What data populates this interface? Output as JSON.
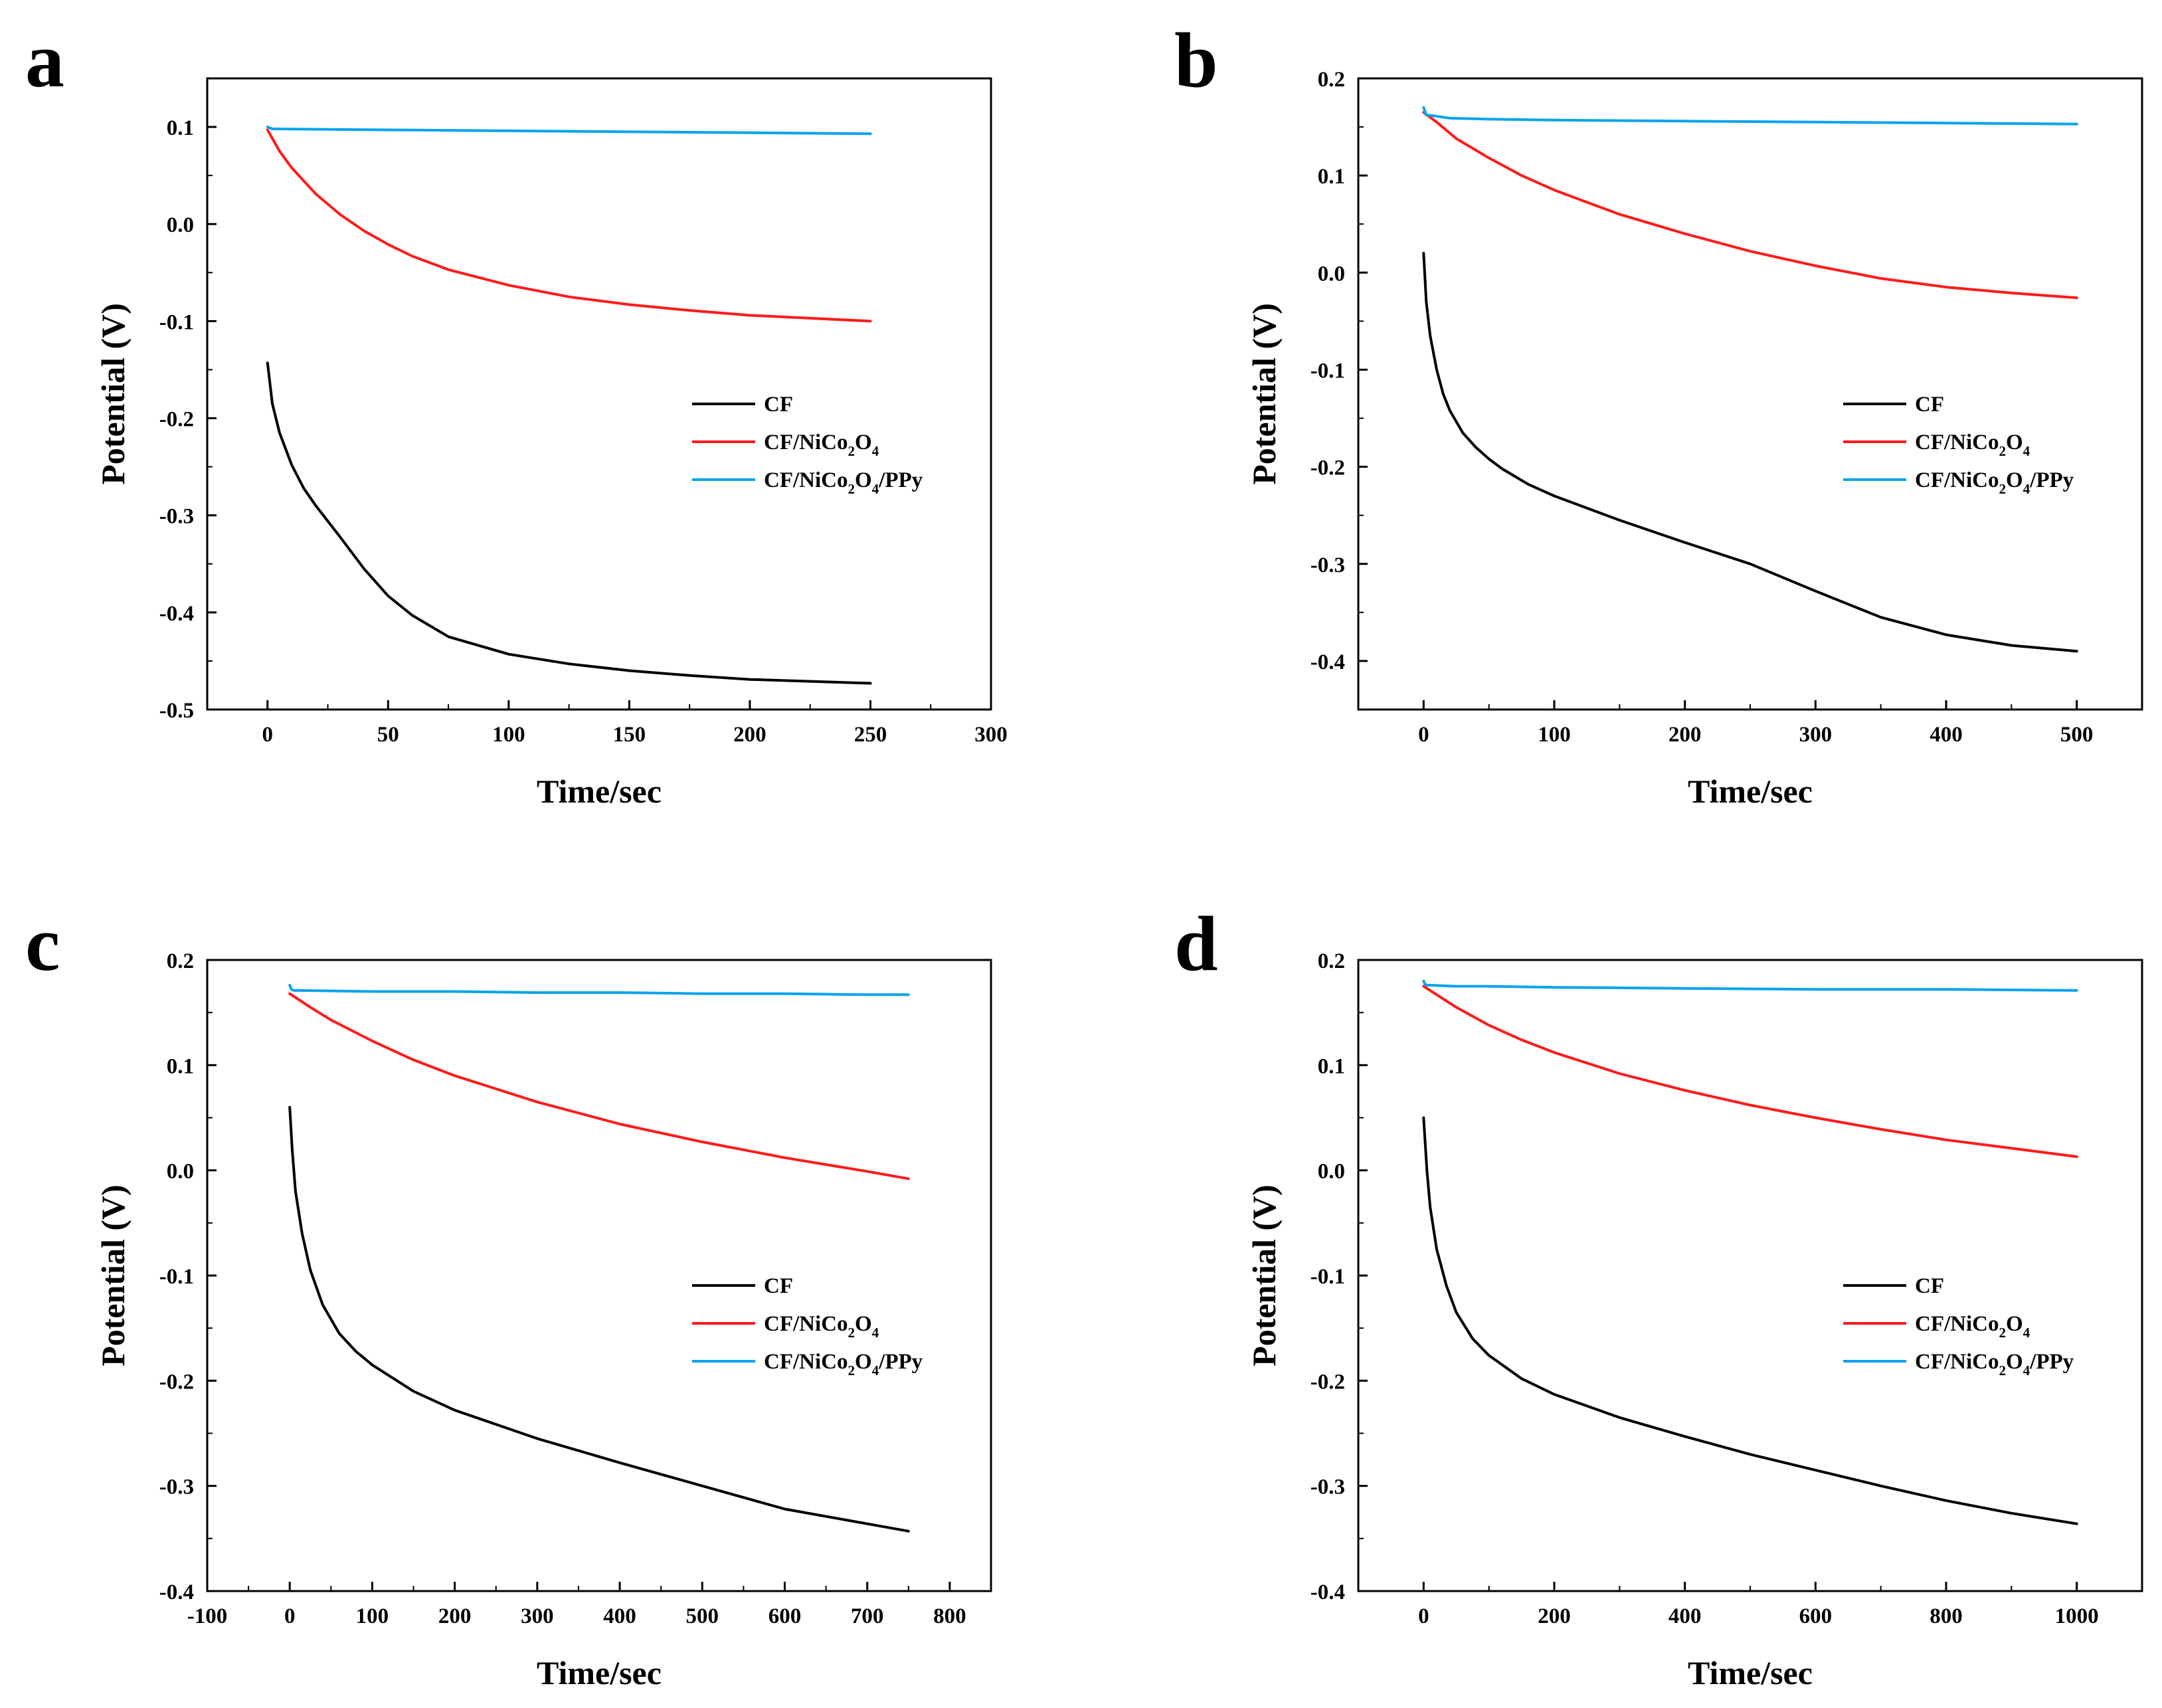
{
  "figure": {
    "panels": [
      "a",
      "b",
      "c",
      "d"
    ]
  },
  "colors": {
    "CF": "#000000",
    "CF/NiCo2O4": "#ff1a1a",
    "CF/NiCo2O4/PPy": "#0aa3ee"
  },
  "chart_data": [
    {
      "panel": "a",
      "type": "line",
      "xlabel": "Time/sec",
      "ylabel": "Potential (V)",
      "xlim": [
        -25,
        300
      ],
      "ylim": [
        -0.5,
        0.15
      ],
      "xticks": [
        0,
        50,
        100,
        150,
        200,
        250,
        300
      ],
      "yticks": [
        -0.5,
        -0.4,
        -0.3,
        -0.2,
        -0.1,
        0.0,
        0.1
      ],
      "ytick_labels": [
        "-0.5",
        "-0.4",
        "-0.3",
        "-0.2",
        "-0.1",
        "0.0",
        "0.1"
      ],
      "legend": [
        {
          "key": "CF",
          "base": "CF",
          "sub": "",
          "tail": ""
        },
        {
          "key": "CF/NiCo2O4",
          "base": "CF/NiCo",
          "sub": "2",
          "tail": "O",
          "sub2": "4",
          "tail2": ""
        },
        {
          "key": "CF/NiCo2O4/PPy",
          "base": "CF/NiCo",
          "sub": "2",
          "tail": "O",
          "sub2": "4",
          "tail2": "/PPy"
        }
      ],
      "series": [
        {
          "name": "CF",
          "x": [
            0,
            2,
            5,
            10,
            15,
            20,
            30,
            40,
            50,
            60,
            75,
            100,
            125,
            150,
            175,
            200,
            225,
            250
          ],
          "y": [
            -0.143,
            -0.185,
            -0.215,
            -0.248,
            -0.272,
            -0.29,
            -0.322,
            -0.355,
            -0.383,
            -0.403,
            -0.425,
            -0.443,
            -0.453,
            -0.46,
            -0.465,
            -0.469,
            -0.471,
            -0.473
          ]
        },
        {
          "name": "CF/NiCo2O4",
          "x": [
            0,
            5,
            10,
            20,
            30,
            40,
            50,
            60,
            75,
            100,
            125,
            150,
            175,
            200,
            225,
            250
          ],
          "y": [
            0.097,
            0.075,
            0.058,
            0.031,
            0.01,
            -0.007,
            -0.021,
            -0.033,
            -0.047,
            -0.063,
            -0.075,
            -0.083,
            -0.089,
            -0.094,
            -0.097,
            -0.1
          ]
        },
        {
          "name": "CF/NiCo2O4/PPy",
          "x": [
            0,
            2,
            50,
            100,
            150,
            200,
            250
          ],
          "y": [
            0.1,
            0.098,
            0.097,
            0.096,
            0.095,
            0.094,
            0.093
          ]
        }
      ]
    },
    {
      "panel": "b",
      "type": "line",
      "xlabel": "Time/sec",
      "ylabel": "Potential (V)",
      "xlim": [
        -50,
        550
      ],
      "ylim": [
        -0.45,
        0.2
      ],
      "xticks": [
        0,
        100,
        200,
        300,
        400,
        500
      ],
      "yticks": [
        -0.4,
        -0.3,
        -0.2,
        -0.1,
        0.0,
        0.1,
        0.2
      ],
      "ytick_labels": [
        "-0.4",
        "-0.3",
        "-0.2",
        "-0.1",
        "0.0",
        "0.1",
        "0.2"
      ],
      "legend": [
        {
          "key": "CF",
          "base": "CF",
          "sub": "",
          "tail": ""
        },
        {
          "key": "CF/NiCo2O4",
          "base": "CF/NiCo",
          "sub": "2",
          "tail": "O",
          "sub2": "4",
          "tail2": ""
        },
        {
          "key": "CF/NiCo2O4/PPy",
          "base": "CF/NiCo",
          "sub": "2",
          "tail": "O",
          "sub2": "4",
          "tail2": "/PPy"
        }
      ],
      "series": [
        {
          "name": "CF",
          "x": [
            0,
            2,
            5,
            10,
            15,
            20,
            30,
            40,
            50,
            60,
            80,
            100,
            150,
            200,
            250,
            300,
            350,
            400,
            450,
            500
          ],
          "y": [
            0.02,
            -0.03,
            -0.065,
            -0.1,
            -0.125,
            -0.142,
            -0.165,
            -0.18,
            -0.192,
            -0.202,
            -0.218,
            -0.23,
            -0.255,
            -0.278,
            -0.3,
            -0.328,
            -0.355,
            -0.373,
            -0.384,
            -0.39
          ]
        },
        {
          "name": "CF/NiCo2O4",
          "x": [
            0,
            10,
            25,
            50,
            75,
            100,
            150,
            200,
            250,
            300,
            350,
            400,
            450,
            500
          ],
          "y": [
            0.165,
            0.155,
            0.138,
            0.118,
            0.1,
            0.085,
            0.06,
            0.04,
            0.022,
            0.007,
            -0.006,
            -0.015,
            -0.021,
            -0.026
          ]
        },
        {
          "name": "CF/NiCo2O4/PPy",
          "x": [
            0,
            2,
            5,
            10,
            20,
            50,
            100,
            200,
            300,
            400,
            500
          ],
          "y": [
            0.17,
            0.162,
            0.162,
            0.161,
            0.159,
            0.158,
            0.157,
            0.156,
            0.155,
            0.154,
            0.153
          ]
        }
      ]
    },
    {
      "panel": "c",
      "type": "line",
      "xlabel": "Time/sec",
      "ylabel": "Potential (V)",
      "xlim": [
        -100,
        850
      ],
      "ylim": [
        -0.4,
        0.2
      ],
      "xticks": [
        -100,
        0,
        100,
        200,
        300,
        400,
        500,
        600,
        700,
        800
      ],
      "yticks": [
        -0.4,
        -0.3,
        -0.2,
        -0.1,
        0.0,
        0.1,
        0.2
      ],
      "ytick_labels": [
        "-0.4",
        "-0.3",
        "-0.2",
        "-0.1",
        "0.0",
        "0.1",
        "0.2"
      ],
      "legend": [
        {
          "key": "CF",
          "base": "CF",
          "sub": "",
          "tail": ""
        },
        {
          "key": "CF/NiCo2O4",
          "base": "CF/NiCo",
          "sub": "2",
          "tail": "O",
          "sub2": "4",
          "tail2": ""
        },
        {
          "key": "CF/NiCo2O4/PPy",
          "base": "CF/NiCo",
          "sub": "2",
          "tail": "O",
          "sub2": "4",
          "tail2": "/PPy"
        }
      ],
      "series": [
        {
          "name": "CF",
          "x": [
            0,
            3,
            7,
            15,
            25,
            40,
            60,
            80,
            100,
            150,
            200,
            300,
            400,
            500,
            600,
            700,
            750
          ],
          "y": [
            0.06,
            0.02,
            -0.02,
            -0.06,
            -0.095,
            -0.128,
            -0.155,
            -0.172,
            -0.185,
            -0.21,
            -0.228,
            -0.255,
            -0.278,
            -0.3,
            -0.322,
            -0.336,
            -0.343
          ]
        },
        {
          "name": "CF/NiCo2O4",
          "x": [
            0,
            25,
            50,
            100,
            150,
            200,
            300,
            400,
            500,
            600,
            700,
            750
          ],
          "y": [
            0.168,
            0.155,
            0.143,
            0.123,
            0.105,
            0.09,
            0.065,
            0.044,
            0.027,
            0.012,
            -0.001,
            -0.008
          ]
        },
        {
          "name": "CF/NiCo2O4/PPy",
          "x": [
            0,
            2,
            5,
            10,
            100,
            200,
            300,
            400,
            500,
            600,
            700,
            750
          ],
          "y": [
            0.176,
            0.172,
            0.171,
            0.171,
            0.17,
            0.17,
            0.169,
            0.169,
            0.168,
            0.168,
            0.167,
            0.167
          ]
        }
      ]
    },
    {
      "panel": "d",
      "type": "line",
      "xlabel": "Time/sec",
      "ylabel": "Potential (V)",
      "xlim": [
        -100,
        1100
      ],
      "ylim": [
        -0.4,
        0.2
      ],
      "xticks": [
        0,
        200,
        400,
        600,
        800,
        1000
      ],
      "yticks": [
        -0.4,
        -0.3,
        -0.2,
        -0.1,
        0.0,
        0.1,
        0.2
      ],
      "ytick_labels": [
        "-0.4",
        "-0.3",
        "-0.2",
        "-0.1",
        "0.0",
        "0.1",
        "0.2"
      ],
      "legend": [
        {
          "key": "CF",
          "base": "CF",
          "sub": "",
          "tail": ""
        },
        {
          "key": "CF/NiCo2O4",
          "base": "CF/NiCo",
          "sub": "2",
          "tail": "O",
          "sub2": "4",
          "tail2": ""
        },
        {
          "key": "CF/NiCo2O4/PPy",
          "base": "CF/NiCo",
          "sub": "2",
          "tail": "O",
          "sub2": "4",
          "tail2": "/PPy"
        }
      ],
      "series": [
        {
          "name": "CF",
          "x": [
            0,
            5,
            10,
            20,
            35,
            50,
            75,
            100,
            150,
            200,
            300,
            400,
            500,
            600,
            700,
            800,
            900,
            1000
          ],
          "y": [
            0.05,
            0.0,
            -0.035,
            -0.075,
            -0.11,
            -0.135,
            -0.16,
            -0.176,
            -0.198,
            -0.213,
            -0.235,
            -0.253,
            -0.27,
            -0.285,
            -0.3,
            -0.314,
            -0.326,
            -0.336
          ]
        },
        {
          "name": "CF/NiCo2O4",
          "x": [
            0,
            25,
            50,
            100,
            150,
            200,
            300,
            400,
            500,
            600,
            700,
            800,
            900,
            1000
          ],
          "y": [
            0.175,
            0.165,
            0.155,
            0.138,
            0.124,
            0.112,
            0.092,
            0.076,
            0.062,
            0.05,
            0.039,
            0.029,
            0.021,
            0.013
          ]
        },
        {
          "name": "CF/NiCo2O4/PPy",
          "x": [
            0,
            2,
            5,
            10,
            50,
            100,
            200,
            400,
            600,
            800,
            1000
          ],
          "y": [
            0.18,
            0.177,
            0.176,
            0.176,
            0.175,
            0.175,
            0.174,
            0.173,
            0.172,
            0.172,
            0.171
          ]
        }
      ]
    }
  ]
}
